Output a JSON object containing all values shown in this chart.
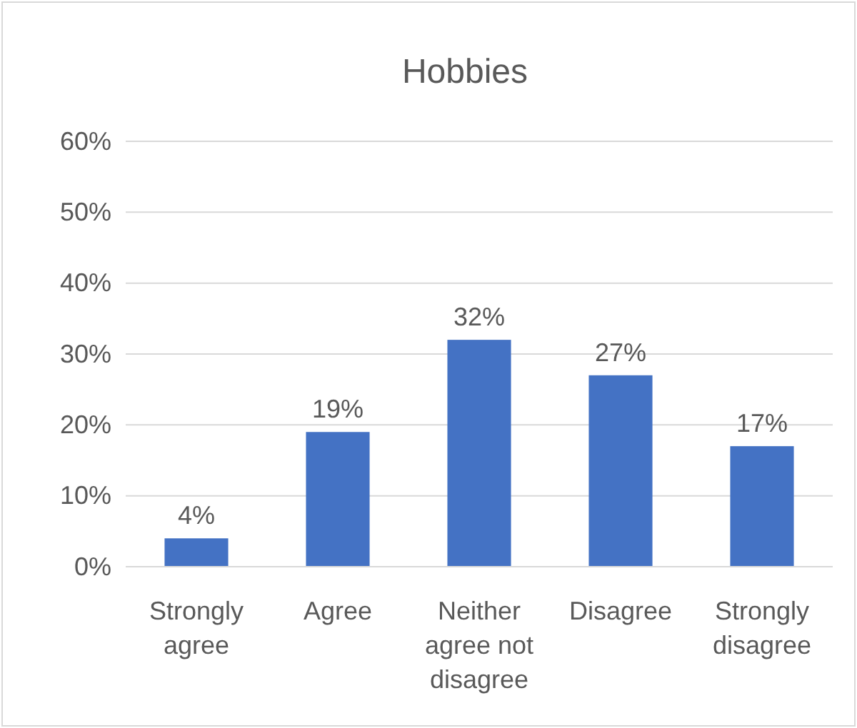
{
  "chart_data": {
    "type": "bar",
    "title": "Hobbies",
    "categories": [
      "Strongly agree",
      "Agree",
      "Neither agree not disagree",
      "Disagree",
      "Strongly disagree"
    ],
    "values": [
      4,
      19,
      32,
      27,
      17
    ],
    "color": "#4472c4",
    "value_labels": [
      "4%",
      "19%",
      "32%",
      "27%",
      "17%"
    ],
    "ylim": [
      0,
      60
    ],
    "yticks": [
      {
        "value": 0,
        "label": "0%"
      },
      {
        "value": 10,
        "label": "10%"
      },
      {
        "value": 20,
        "label": "20%"
      },
      {
        "value": 30,
        "label": "30%"
      },
      {
        "value": 40,
        "label": "40%"
      },
      {
        "value": 50,
        "label": "50%"
      },
      {
        "value": 60,
        "label": "60%"
      }
    ],
    "grid": "y"
  }
}
